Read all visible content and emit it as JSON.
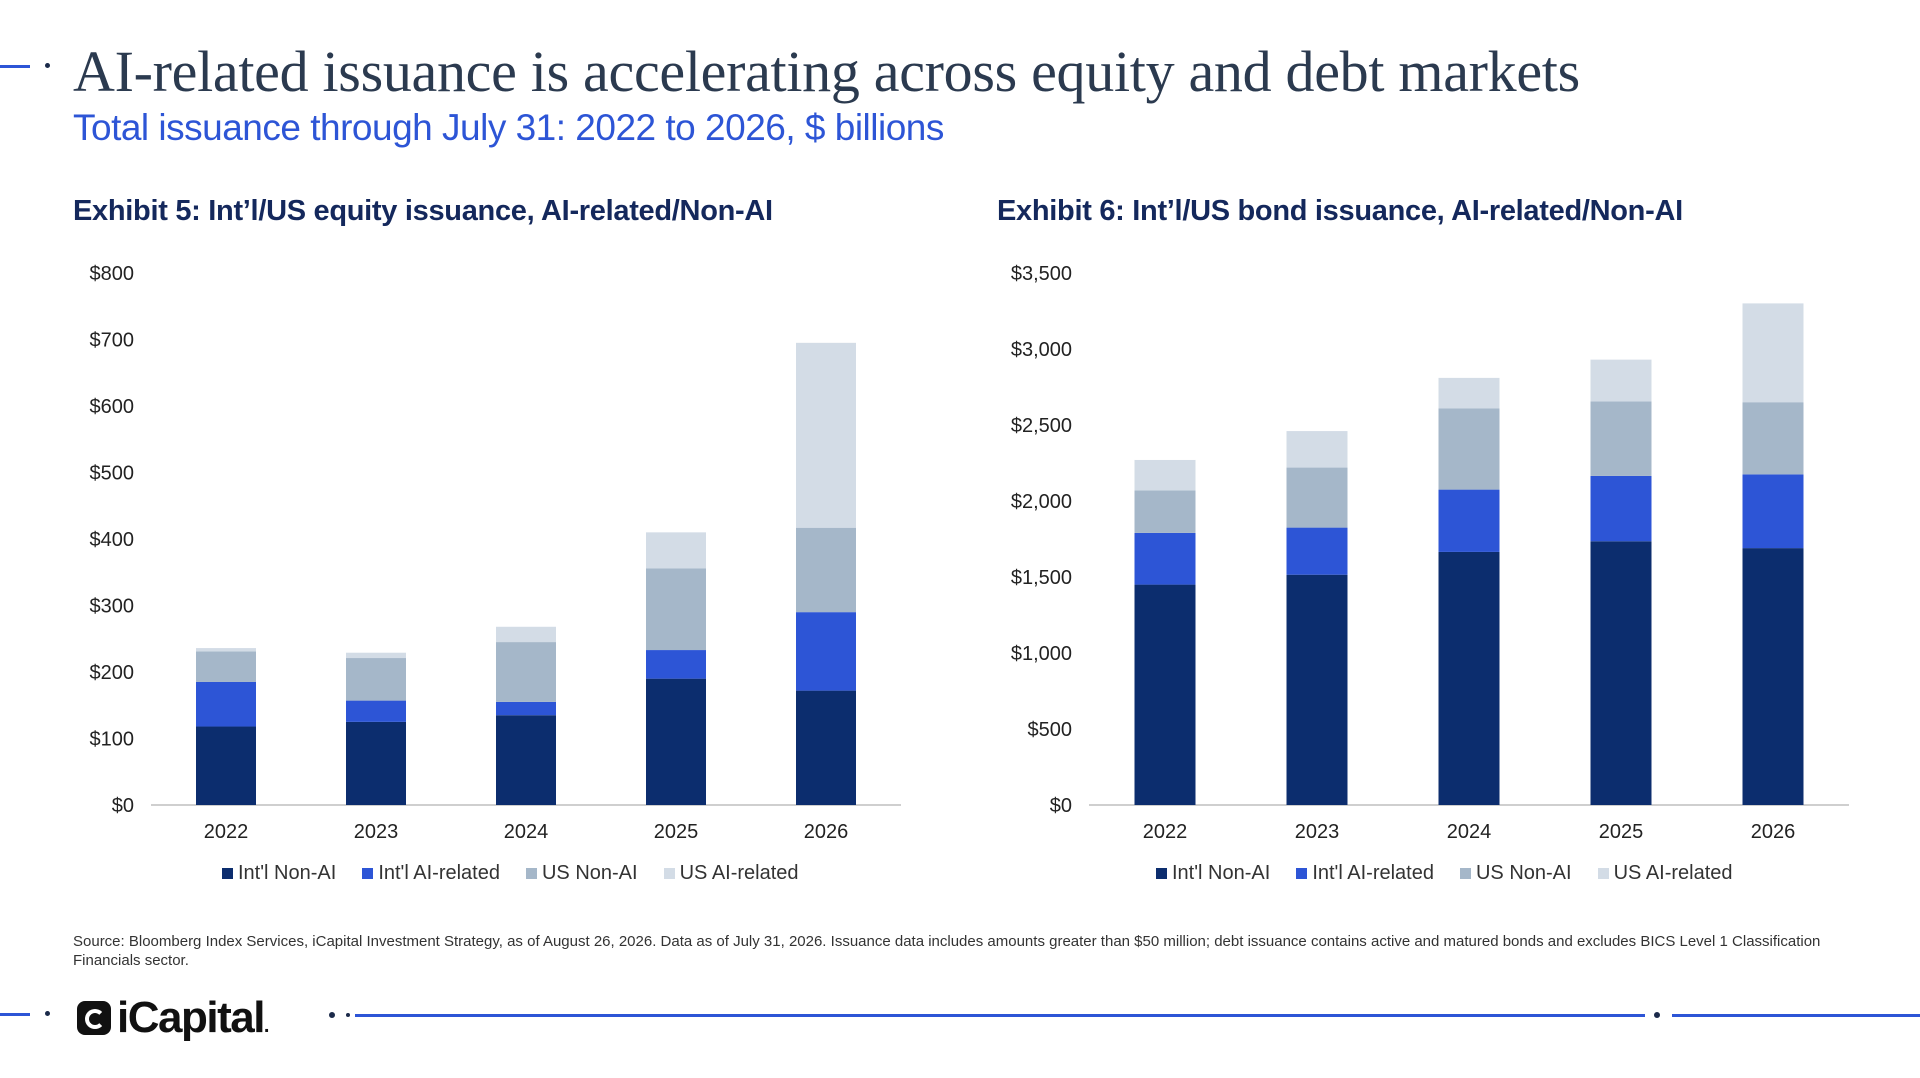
{
  "header": {
    "title": "AI-related issuance is accelerating across equity and debt markets",
    "subtitle": "Total issuance through July 31: 2022 to 2026, $ billions"
  },
  "colors": {
    "intl_non_ai": "#0c2d6e",
    "intl_ai": "#2d55d6",
    "us_non_ai": "#a5b7c9",
    "us_ai": "#d3dce6",
    "accent": "#2d55d6"
  },
  "chart_data": [
    {
      "type": "bar",
      "stacked": true,
      "title": "Exhibit 5: Int’l/US equity issuance, AI-related/Non-AI",
      "categories": [
        "2022",
        "2023",
        "2024",
        "2025",
        "2026"
      ],
      "ylim": [
        0,
        800
      ],
      "yticks": [
        0,
        100,
        200,
        300,
        400,
        500,
        600,
        700,
        800
      ],
      "ytick_labels": [
        "$0",
        "$100",
        "$200",
        "$300",
        "$400",
        "$500",
        "$600",
        "$700",
        "$800"
      ],
      "grid": false,
      "legend": "bottom",
      "series": [
        {
          "name": "Int'l Non-AI",
          "color": "#0c2d6e",
          "values": [
            118,
            125,
            135,
            190,
            172
          ]
        },
        {
          "name": "Int'l AI-related",
          "color": "#2d55d6",
          "values": [
            67,
            32,
            20,
            43,
            118
          ]
        },
        {
          "name": "US Non-AI",
          "color": "#a5b7c9",
          "values": [
            46,
            64,
            90,
            123,
            127
          ]
        },
        {
          "name": "US AI-related",
          "color": "#d3dce6",
          "values": [
            5,
            8,
            23,
            54,
            278
          ]
        }
      ]
    },
    {
      "type": "bar",
      "stacked": true,
      "title": "Exhibit 6: Int’l/US bond issuance, AI-related/Non-AI",
      "categories": [
        "2022",
        "2023",
        "2024",
        "2025",
        "2026"
      ],
      "ylim": [
        0,
        3500
      ],
      "yticks": [
        0,
        500,
        1000,
        1500,
        2000,
        2500,
        3000,
        3500
      ],
      "ytick_labels": [
        "$0",
        "$500",
        "$1,000",
        "$1,500",
        "$2,000",
        "$2,500",
        "$3,000",
        "$3,500"
      ],
      "grid": false,
      "legend": "bottom",
      "series": [
        {
          "name": "Int'l Non-AI",
          "color": "#0c2d6e",
          "values": [
            1450,
            1515,
            1665,
            1735,
            1690
          ]
        },
        {
          "name": "Int'l AI-related",
          "color": "#2d55d6",
          "values": [
            340,
            310,
            410,
            430,
            485
          ]
        },
        {
          "name": "US Non-AI",
          "color": "#a5b7c9",
          "values": [
            280,
            395,
            535,
            490,
            475
          ]
        },
        {
          "name": "US AI-related",
          "color": "#d3dce6",
          "values": [
            200,
            240,
            200,
            275,
            650
          ]
        }
      ]
    }
  ],
  "footer": {
    "source": "Source: Bloomberg Index Services, iCapital Investment Strategy, as of August 26, 2026. Data as of July 31, 2026. Issuance data includes amounts greater than $50 million; debt issuance contains active and matured bonds and excludes BICS Level 1 Classification Financials sector.",
    "logo_text": "iCapital",
    "logo_trademark": "."
  }
}
